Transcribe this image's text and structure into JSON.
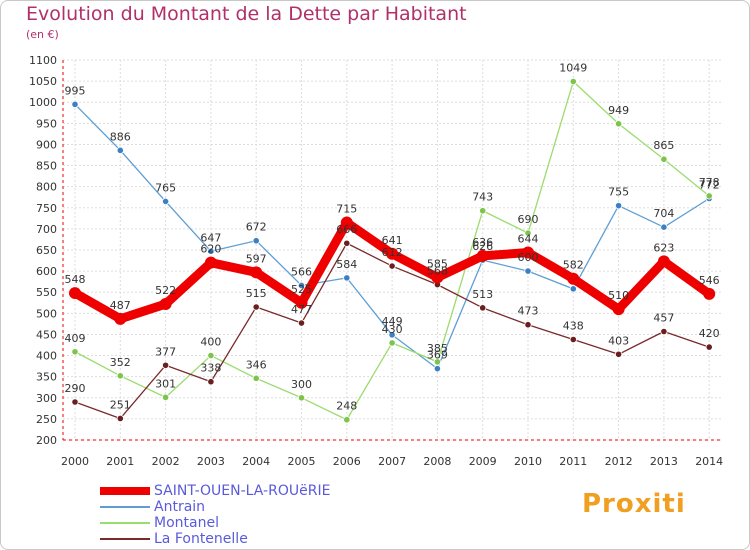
{
  "chart_data": {
    "type": "line",
    "title": "Evolution du Montant de la Dette par Habitant",
    "subtitle": "(en €)",
    "xlabel": "",
    "ylabel": "",
    "ylim": [
      200,
      1100
    ],
    "ytick_step": 50,
    "categories": [
      "2000",
      "2001",
      "2002",
      "2003",
      "2004",
      "2005",
      "2006",
      "2007",
      "2008",
      "2009",
      "2010",
      "2011",
      "2012",
      "2013",
      "2014"
    ],
    "series": [
      {
        "name": "Antrain",
        "color": "#5e9ed3",
        "point_color": "#3b80c4",
        "values": [
          995,
          886,
          765,
          647,
          672,
          566,
          584,
          449,
          369,
          626,
          600,
          558,
          755,
          704,
          772
        ],
        "labels": [
          "995",
          "886",
          "765",
          "647",
          "672",
          "566",
          "584",
          "449",
          "369",
          "626",
          "600",
          "",
          "755",
          "704",
          "772"
        ]
      },
      {
        "name": "Montanel",
        "color": "#9bdc6e",
        "point_color": "#7cc44a",
        "values": [
          409,
          352,
          301,
          400,
          346,
          300,
          248,
          430,
          385,
          743,
          690,
          1049,
          949,
          865,
          778
        ],
        "labels": [
          "409",
          "352",
          "301",
          "400",
          "346",
          "300",
          "248",
          "430",
          "385",
          "743",
          "690",
          "1049",
          "949",
          "865",
          "778"
        ]
      },
      {
        "name": "La Fontenelle",
        "color": "#7a2a2a",
        "point_color": "#6a1e1e",
        "values": [
          290,
          251,
          377,
          338,
          515,
          477,
          666,
          612,
          568,
          513,
          473,
          438,
          403,
          457,
          420
        ],
        "labels": [
          "290",
          "251",
          "377",
          "338",
          "515",
          "477",
          "666",
          "612",
          "568",
          "513",
          "473",
          "438",
          "403",
          "457",
          "420"
        ]
      },
      {
        "name": "SAINT-OUEN-LA-ROUëRIE",
        "color": "#ee0000",
        "point_color": "#ee0000",
        "values": [
          548,
          487,
          522,
          620,
          597,
          525,
          715,
          641,
          585,
          636,
          644,
          582,
          510,
          623,
          546
        ],
        "labels": [
          "548",
          "487",
          "522",
          "620",
          "597",
          "525",
          "715",
          "641",
          "585",
          "636",
          "644",
          "582",
          "510",
          "623",
          "546"
        ],
        "bold": true
      }
    ],
    "legend": [
      "SAINT-OUEN-LA-ROUëRIE",
      "Antrain",
      "Montanel",
      "La Fontenelle"
    ],
    "legend_colors": [
      "#ee0000",
      "#5e9ed3",
      "#9bdc6e",
      "#7a2a2a"
    ],
    "legend_placement": "bottom-left"
  },
  "logo_text": "Proxiti"
}
